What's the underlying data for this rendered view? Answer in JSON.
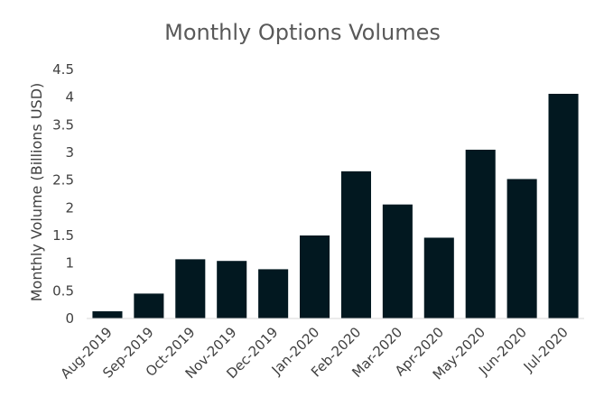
{
  "colors": {
    "bar": "#021820",
    "axis": "#d9d9d9",
    "text": "#404040",
    "title": "#595959"
  },
  "chart_data": {
    "type": "bar",
    "title": "Monthly Options Volumes",
    "xlabel": "",
    "ylabel": "Monthly Volume (Billions USD)",
    "ylim": [
      0,
      4.5
    ],
    "yticks": [
      0,
      0.5,
      1,
      1.5,
      2,
      2.5,
      3,
      3.5,
      4,
      4.5
    ],
    "ytick_labels": [
      "0",
      "0.5",
      "1",
      "1.5",
      "2",
      "2.5",
      "3",
      "3.5",
      "4",
      "4.5"
    ],
    "grid": false,
    "legend": "none",
    "categories": [
      "Aug-2019",
      "Sep-2019",
      "Oct-2019",
      "Nov-2019",
      "Dec-2019",
      "Jan-2020",
      "Feb-2020",
      "Mar-2020",
      "Apr-2020",
      "May-2020",
      "Jun-2020",
      "Jul-2020"
    ],
    "values": [
      0.13,
      0.45,
      1.07,
      1.04,
      0.89,
      1.5,
      2.66,
      2.06,
      1.46,
      3.05,
      2.52,
      4.06
    ]
  }
}
